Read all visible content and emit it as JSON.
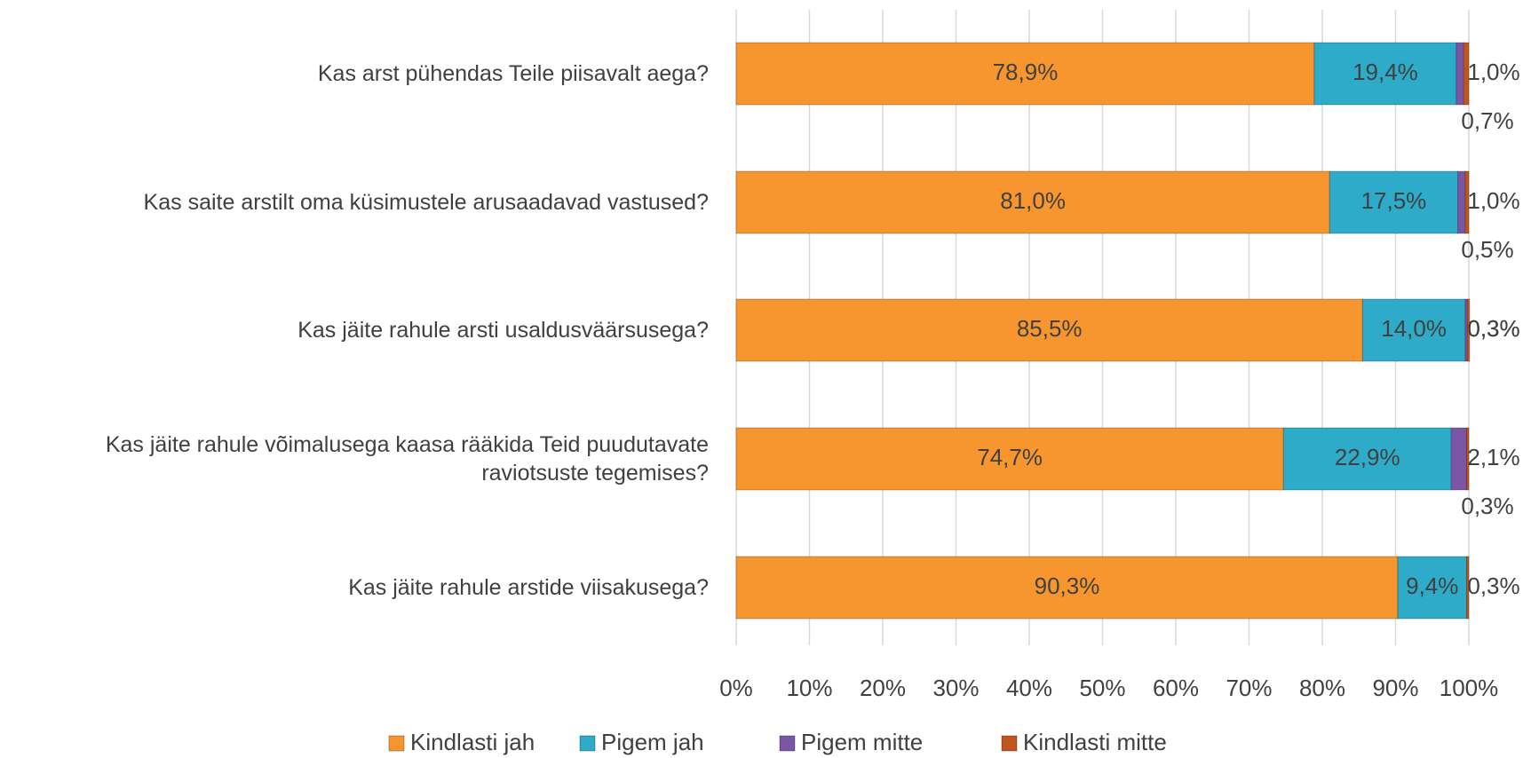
{
  "chart_data": {
    "type": "stacked-bar-horizontal",
    "categories": [
      "Kas arst pühendas Teile piisavalt aega?",
      "Kas saite arstilt oma küsimustele arusaadavad vastused?",
      "Kas jäite rahule arsti usaldusväärsusega?",
      "Kas jäite rahule võimalusega kaasa rääkida Teid puudutavate raviotsuste tegemises?",
      "Kas jäite rahule arstide viisakusega?"
    ],
    "series": [
      {
        "name": "Kindlasti jah",
        "color": "#f7962e",
        "values": [
          78.9,
          81.0,
          85.5,
          74.7,
          90.3
        ],
        "value_labels": [
          "78,9%",
          "81,0%",
          "85,5%",
          "74,7%",
          "90,3%"
        ]
      },
      {
        "name": "Pigem jah",
        "color": "#2eabc8",
        "values": [
          19.4,
          17.5,
          14.0,
          22.9,
          9.4
        ],
        "value_labels": [
          "19,4%",
          "17,5%",
          "14,0%",
          "22,9%",
          "9,4%"
        ]
      },
      {
        "name": "Pigem mitte",
        "color": "#7b56a6",
        "values": [
          1.0,
          1.0,
          0.3,
          2.1,
          0
        ],
        "value_labels": [
          "1,0%",
          "1,0%",
          "0,3%",
          "2,1%",
          null
        ]
      },
      {
        "name": "Kindlasti mitte",
        "color": "#c0561c",
        "values": [
          0.7,
          0.5,
          0.3,
          0.3,
          0.3
        ],
        "value_labels": [
          "0,7%",
          "0,5%",
          "0,3%",
          "0,3%",
          "0,3%"
        ]
      }
    ],
    "xlim": [
      0,
      100
    ],
    "xticks": [
      {
        "value": 0,
        "label": "0%"
      },
      {
        "value": 10,
        "label": "10%"
      },
      {
        "value": 20,
        "label": "20%"
      },
      {
        "value": 30,
        "label": "30%"
      },
      {
        "value": 40,
        "label": "40%"
      },
      {
        "value": 50,
        "label": "50%"
      },
      {
        "value": 60,
        "label": "60%"
      },
      {
        "value": 70,
        "label": "70%"
      },
      {
        "value": 80,
        "label": "80%"
      },
      {
        "value": 90,
        "label": "90%"
      },
      {
        "value": 100,
        "label": "100%"
      }
    ],
    "grid": true,
    "legend": "bottom"
  }
}
